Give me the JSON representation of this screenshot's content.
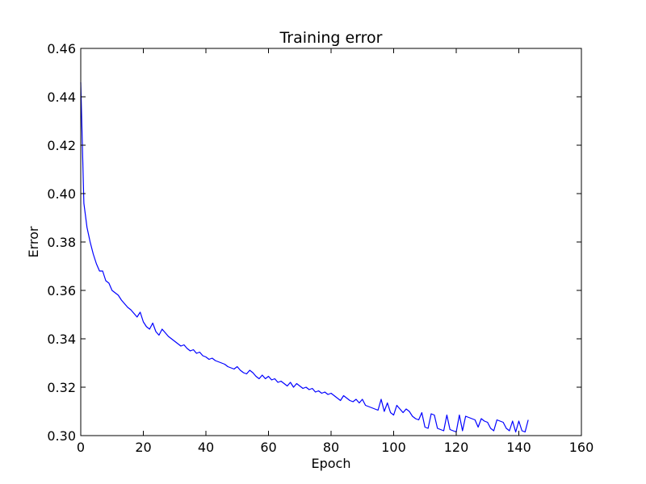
{
  "chart_data": {
    "type": "line",
    "title": "Training error",
    "xlabel": "Epoch",
    "ylabel": "Error",
    "xlim": [
      0,
      160
    ],
    "ylim": [
      0.3,
      0.46
    ],
    "xticks": [
      "0",
      "20",
      "40",
      "60",
      "80",
      "100",
      "120",
      "140",
      "160"
    ],
    "yticks": [
      "0.30",
      "0.32",
      "0.34",
      "0.36",
      "0.38",
      "0.40",
      "0.42",
      "0.44",
      "0.46"
    ],
    "grid": false,
    "series": [
      {
        "color": "#0000ff",
        "x": [
          0,
          1,
          2,
          3,
          4,
          5,
          6,
          7,
          8,
          9,
          10,
          11,
          12,
          13,
          14,
          15,
          16,
          17,
          18,
          19,
          20,
          21,
          22,
          23,
          24,
          25,
          26,
          27,
          28,
          29,
          30,
          31,
          32,
          33,
          34,
          35,
          36,
          37,
          38,
          39,
          40,
          41,
          42,
          43,
          44,
          45,
          46,
          47,
          48,
          49,
          50,
          51,
          52,
          53,
          54,
          55,
          56,
          57,
          58,
          59,
          60,
          61,
          62,
          63,
          64,
          65,
          66,
          67,
          68,
          69,
          70,
          71,
          72,
          73,
          74,
          75,
          76,
          77,
          78,
          79,
          80,
          81,
          82,
          83,
          84,
          85,
          86,
          87,
          88,
          89,
          90,
          91,
          92,
          93,
          94,
          95,
          96,
          97,
          98,
          99,
          100,
          101,
          102,
          103,
          104,
          105,
          106,
          107,
          108,
          109,
          110,
          111,
          112,
          113,
          114,
          115,
          116,
          117,
          118,
          119,
          120,
          121,
          122,
          123,
          124,
          125,
          126,
          127,
          128,
          129,
          130,
          131,
          132,
          133,
          134,
          135,
          136,
          137,
          138,
          139,
          140,
          141,
          142,
          143
        ],
        "y": [
          0.446,
          0.396,
          0.386,
          0.38,
          0.375,
          0.371,
          0.368,
          0.368,
          0.364,
          0.363,
          0.36,
          0.359,
          0.358,
          0.356,
          0.3545,
          0.353,
          0.352,
          0.3505,
          0.349,
          0.351,
          0.347,
          0.345,
          0.344,
          0.3465,
          0.343,
          0.3415,
          0.344,
          0.3425,
          0.341,
          0.34,
          0.339,
          0.338,
          0.337,
          0.3375,
          0.336,
          0.335,
          0.3355,
          0.334,
          0.3345,
          0.333,
          0.3325,
          0.3315,
          0.332,
          0.331,
          0.3305,
          0.33,
          0.3295,
          0.3285,
          0.328,
          0.3275,
          0.3285,
          0.327,
          0.326,
          0.3255,
          0.327,
          0.326,
          0.3245,
          0.3235,
          0.325,
          0.3235,
          0.3245,
          0.323,
          0.3235,
          0.322,
          0.3225,
          0.3215,
          0.3205,
          0.322,
          0.32,
          0.3215,
          0.3205,
          0.3195,
          0.32,
          0.319,
          0.3195,
          0.318,
          0.3185,
          0.3175,
          0.318,
          0.317,
          0.3175,
          0.3165,
          0.3155,
          0.3145,
          0.3165,
          0.3155,
          0.3145,
          0.314,
          0.315,
          0.3135,
          0.315,
          0.3125,
          0.312,
          0.3115,
          0.311,
          0.3105,
          0.315,
          0.31,
          0.3135,
          0.3095,
          0.3085,
          0.3125,
          0.311,
          0.3095,
          0.311,
          0.31,
          0.308,
          0.307,
          0.3065,
          0.3095,
          0.3035,
          0.303,
          0.309,
          0.3085,
          0.303,
          0.3025,
          0.302,
          0.3085,
          0.3025,
          0.302,
          0.3015,
          0.3085,
          0.302,
          0.308,
          0.3075,
          0.307,
          0.3065,
          0.3035,
          0.307,
          0.306,
          0.3055,
          0.303,
          0.302,
          0.3065,
          0.306,
          0.3055,
          0.303,
          0.302,
          0.306,
          0.3015,
          0.306,
          0.302,
          0.3015,
          0.3065
        ]
      }
    ]
  }
}
